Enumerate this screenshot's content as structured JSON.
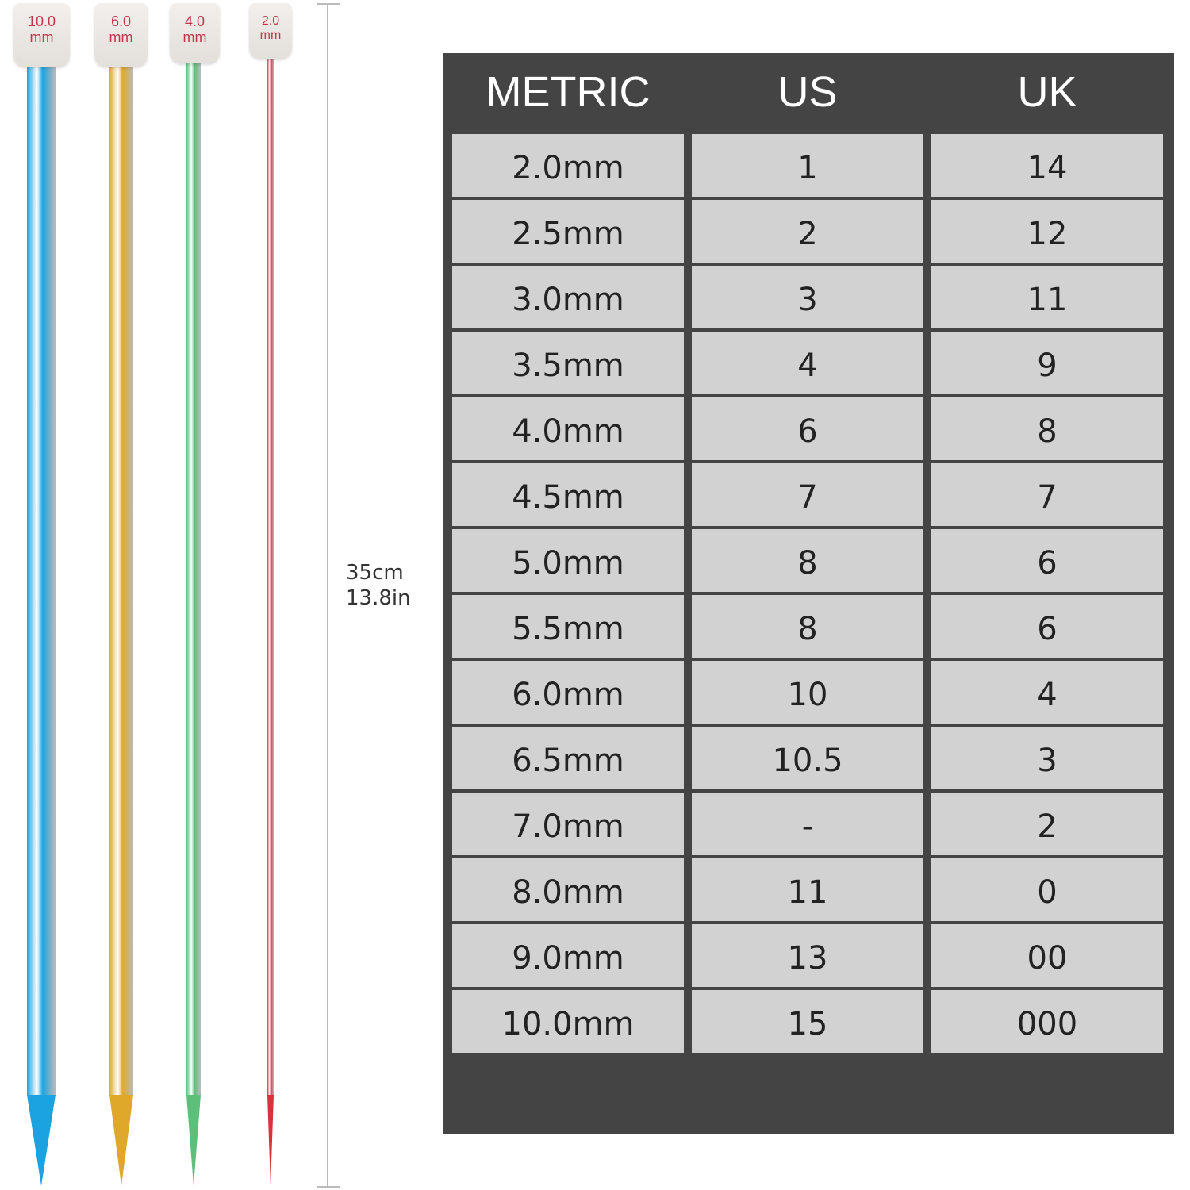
{
  "needles": [
    {
      "size": "10.0",
      "unit": "mm",
      "color": "#1aa3e0"
    },
    {
      "size": "6.0",
      "unit": "mm",
      "color": "#e0a82a"
    },
    {
      "size": "4.0",
      "unit": "mm",
      "color": "#5cc07a"
    },
    {
      "size": "2.0",
      "unit": "mm",
      "color": "#d9323f"
    }
  ],
  "length": {
    "cm": "35cm",
    "in": "13.8in"
  },
  "table": {
    "headers": [
      "METRIC",
      "US",
      "UK"
    ],
    "rows": [
      [
        "2.0mm",
        "1",
        "14"
      ],
      [
        "2.5mm",
        "2",
        "12"
      ],
      [
        "3.0mm",
        "3",
        "11"
      ],
      [
        "3.5mm",
        "4",
        "9"
      ],
      [
        "4.0mm",
        "6",
        "8"
      ],
      [
        "4.5mm",
        "7",
        "7"
      ],
      [
        "5.0mm",
        "8",
        "6"
      ],
      [
        "5.5mm",
        "8",
        "6"
      ],
      [
        "6.0mm",
        "10",
        "4"
      ],
      [
        "6.5mm",
        "10.5",
        "3"
      ],
      [
        "7.0mm",
        "-",
        "2"
      ],
      [
        "8.0mm",
        "11",
        "0"
      ],
      [
        "9.0mm",
        "13",
        "00"
      ],
      [
        "10.0mm",
        "15",
        "000"
      ]
    ]
  }
}
